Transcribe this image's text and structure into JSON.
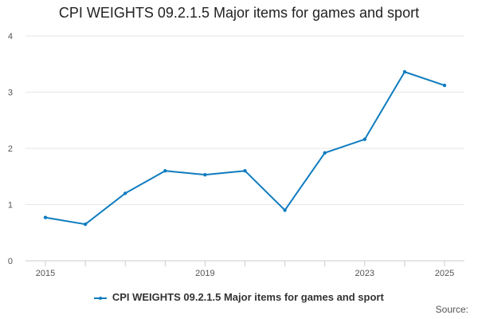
{
  "colors": {
    "series": "#0f7cbf",
    "grid": "#e6e6e6",
    "axis": "#cccccc",
    "tick_label": "#555555"
  },
  "chart_data": {
    "type": "line",
    "title": "CPI WEIGHTS 09.2.1.5 Major items for games and sport",
    "xlabel": "",
    "ylabel": "",
    "x": [
      2015,
      2016,
      2017,
      2018,
      2019,
      2020,
      2021,
      2022,
      2023,
      2024,
      2025
    ],
    "x_tick_labels": [
      "2015",
      "2019",
      "2023",
      "2025"
    ],
    "y_tick_labels": [
      "0",
      "1",
      "2",
      "3",
      "4"
    ],
    "ylim": [
      0,
      4
    ],
    "grid": "horizontal",
    "legend_position": "bottom",
    "series": [
      {
        "name": "CPI WEIGHTS 09.2.1.5 Major items for games and sport",
        "values": [
          0.77,
          0.65,
          1.2,
          1.6,
          1.53,
          1.6,
          0.9,
          1.92,
          2.16,
          3.36,
          3.12
        ]
      }
    ]
  },
  "source_label": "Source:"
}
